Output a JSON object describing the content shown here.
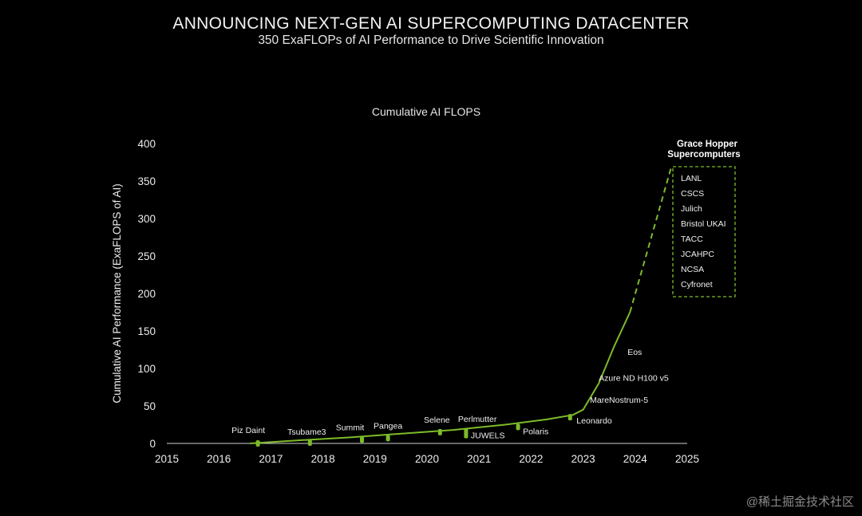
{
  "header": {
    "headline": "ANNOUNCING NEXT-GEN AI SUPERCOMPUTING DATACENTER",
    "subheadline": "350 ExaFLOPs of AI Performance to Drive Scientific Innovation"
  },
  "watermark": "@稀土掘金技术社区",
  "colors": {
    "accent": "#7dbb2a",
    "background": "#000000",
    "text": "#ffffff"
  },
  "chart_data": {
    "type": "line",
    "title": "Cumulative AI FLOPS",
    "xlabel": "",
    "ylabel": "Cumulative AI Performance (ExaFLOPS of AI)",
    "xlim": [
      2015,
      2025
    ],
    "ylim": [
      0,
      400
    ],
    "x_ticks": [
      "2015",
      "2016",
      "2017",
      "2018",
      "2019",
      "2020",
      "2021",
      "2022",
      "2023",
      "2024",
      "2025"
    ],
    "y_ticks": [
      "0",
      "50",
      "100",
      "150",
      "200",
      "250",
      "300",
      "350",
      "400"
    ],
    "grid": false,
    "series": [
      {
        "name": "Cumulative AI FLOPS",
        "style": "solid",
        "x": [
          2016.6,
          2017.5,
          2018.5,
          2019.5,
          2020.5,
          2021.5,
          2022.3,
          2022.8,
          2023.0,
          2023.3,
          2023.6,
          2023.9
        ],
        "y": [
          0,
          4,
          8,
          13,
          18,
          25,
          32,
          38,
          45,
          80,
          130,
          175
        ]
      },
      {
        "name": "Grace Hopper projection",
        "style": "dashed",
        "x": [
          2023.9,
          2024.7
        ],
        "y": [
          175,
          370
        ]
      }
    ],
    "points": [
      {
        "label": "Piz Daint",
        "x": 2016.75,
        "y": 0
      },
      {
        "label": "Tsubame3",
        "x": 2017.75,
        "y": 1
      },
      {
        "label": "Summit",
        "x": 2018.75,
        "y": 5
      },
      {
        "label": "Pangea",
        "x": 2019.25,
        "y": 7
      },
      {
        "label": "Selene",
        "x": 2020.25,
        "y": 15
      },
      {
        "label": "Perlmutter",
        "x": 2020.75,
        "y": 16
      },
      {
        "label": "JUWELS",
        "x": 2020.75,
        "y": 11
      },
      {
        "label": "Polaris",
        "x": 2021.75,
        "y": 22
      },
      {
        "label": "Leonardo",
        "x": 2022.75,
        "y": 35
      },
      {
        "label": "MareNostrum-5",
        "x": 2023.1,
        "y": 50
      },
      {
        "label": "Azure ND H100 v5",
        "x": 2023.3,
        "y": 88
      },
      {
        "label": "Eos",
        "x": 2023.5,
        "y": 120
      }
    ],
    "annotation_box": {
      "title_line1": "Grace Hopper",
      "title_line2": "Supercomputers",
      "items": [
        "LANL",
        "CSCS",
        "Julich",
        "Bristol UKAI",
        "TACC",
        "JCAHPC",
        "NCSA",
        "Cyfronet"
      ]
    }
  }
}
